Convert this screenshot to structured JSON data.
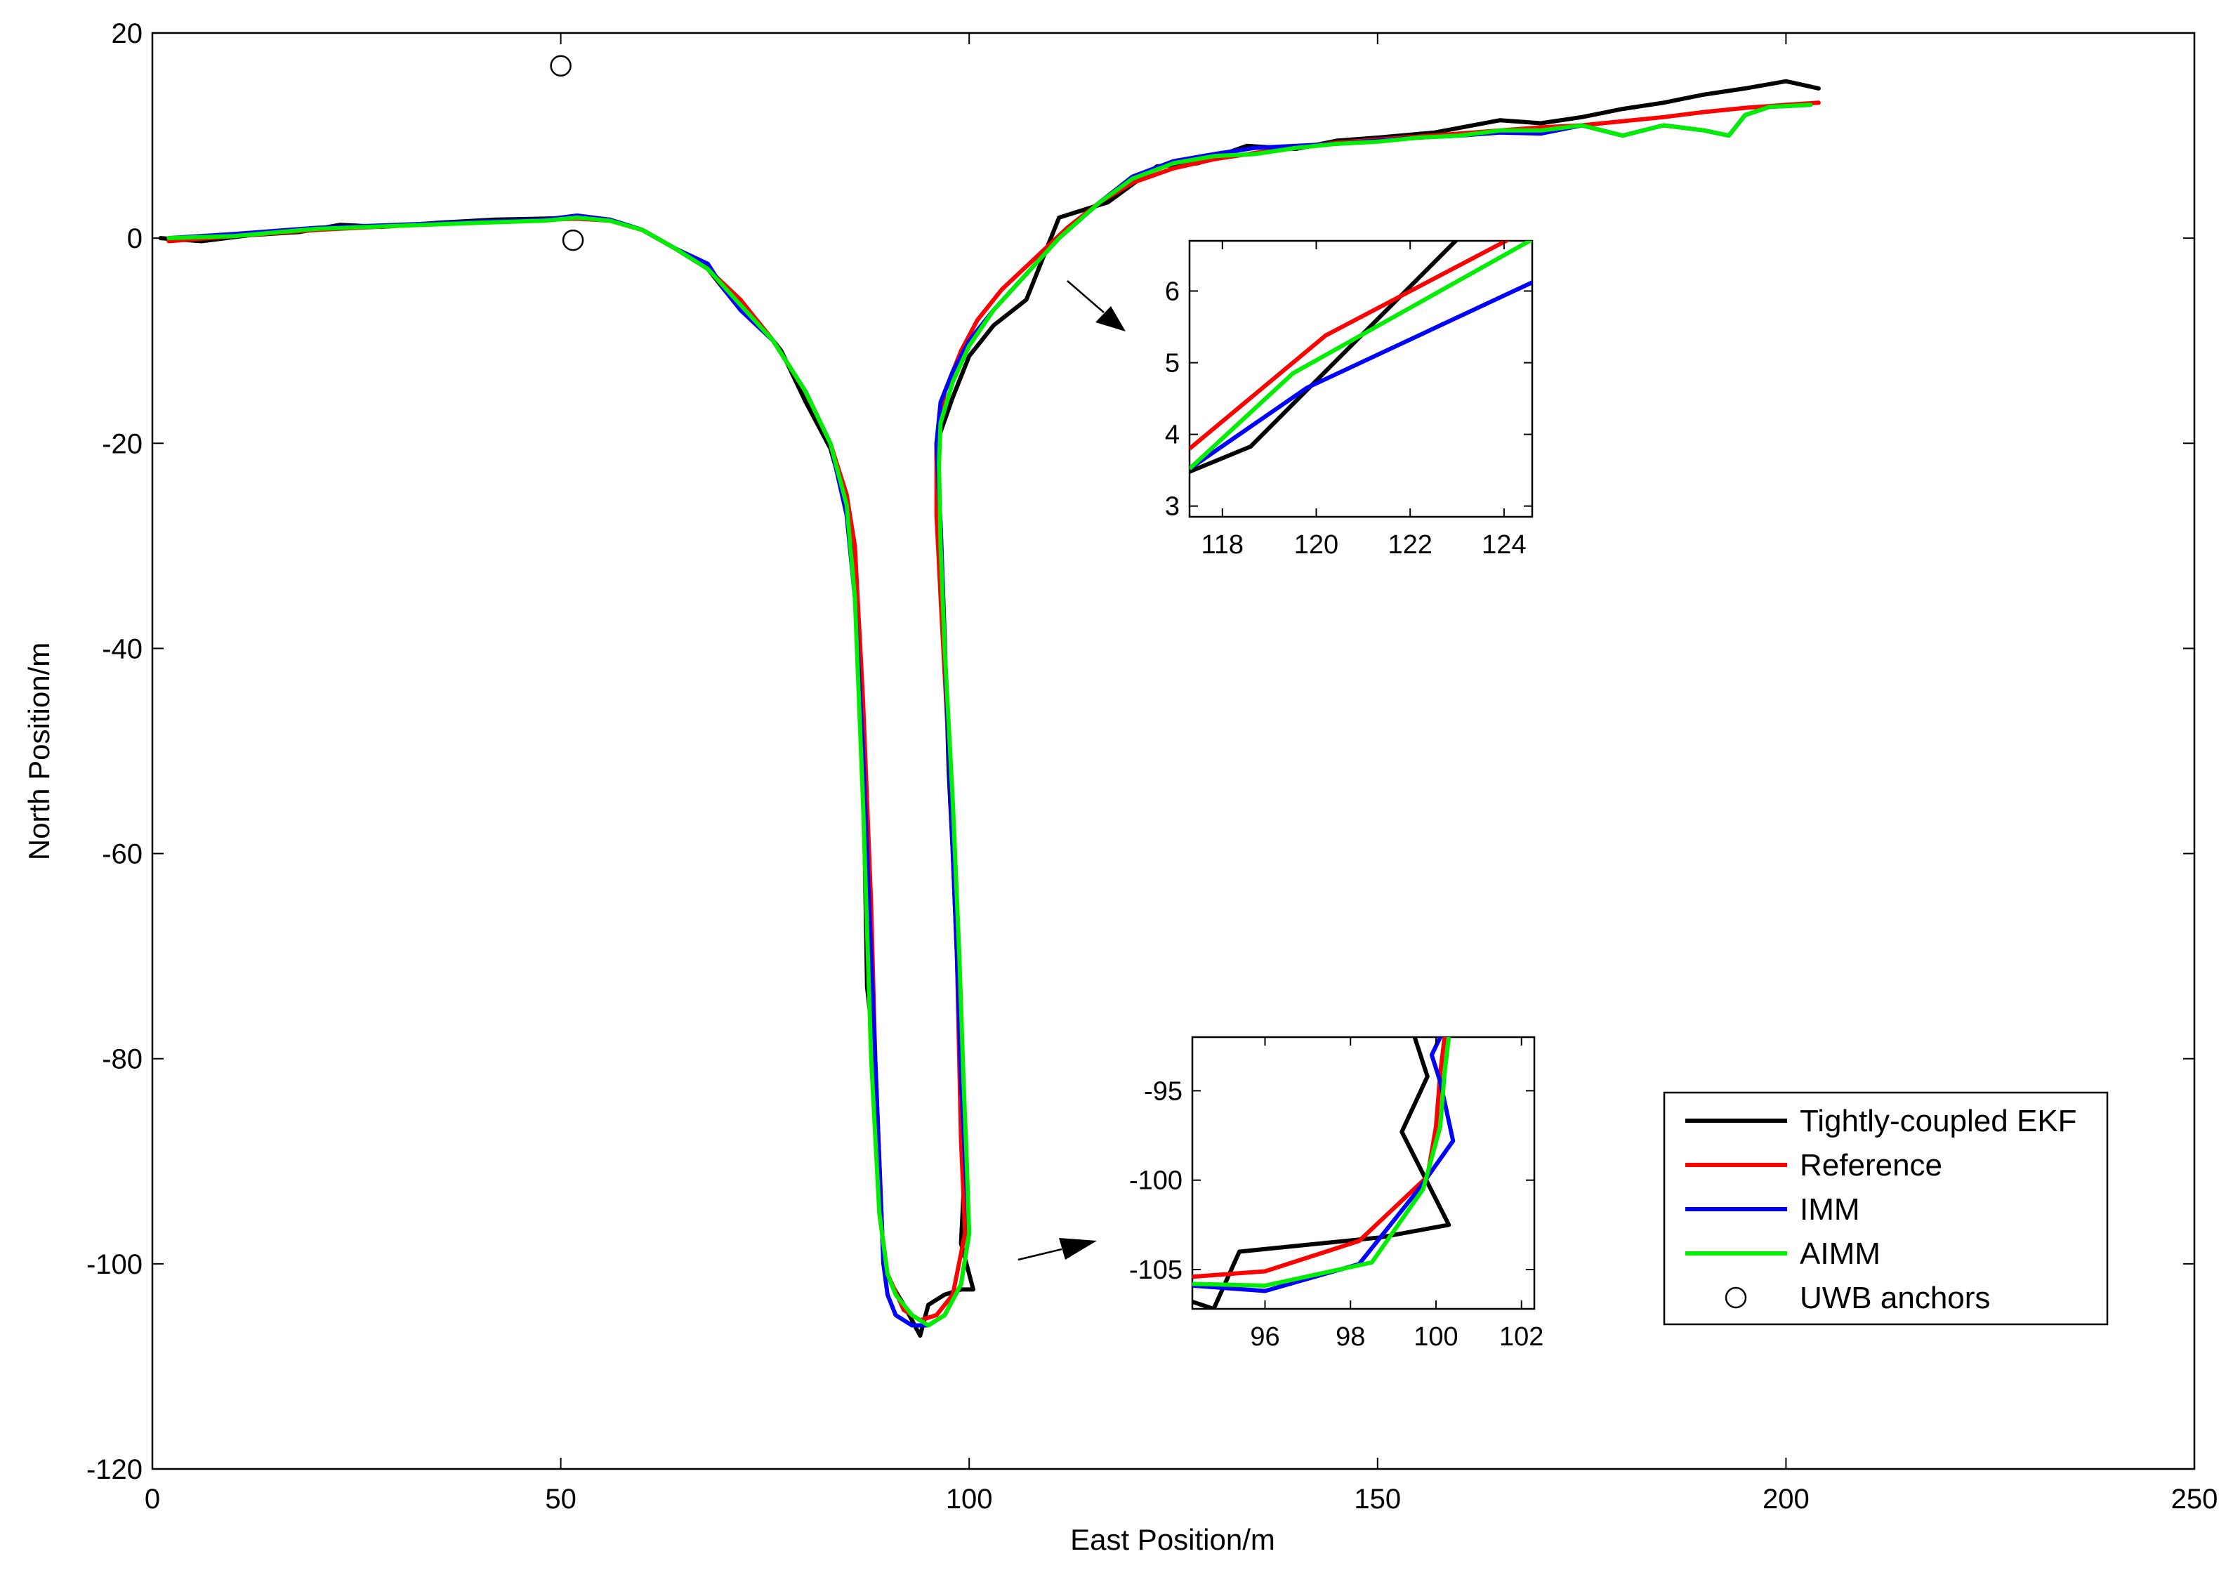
{
  "chart_data": {
    "type": "line",
    "title": "",
    "xlabel": "East Position/m",
    "ylabel": "North Position/m",
    "xlim": [
      0,
      250
    ],
    "ylim": [
      -120,
      20
    ],
    "xticks": [
      0,
      50,
      100,
      150,
      200,
      250
    ],
    "yticks": [
      -120,
      -100,
      -80,
      -60,
      -40,
      -20,
      0,
      20
    ],
    "xtick_labels": [
      "0",
      "50",
      "100",
      "150",
      "200",
      "250"
    ],
    "ytick_labels": [
      "-120",
      "-100",
      "-80",
      "-60",
      "-40",
      "-20",
      "0",
      "20"
    ],
    "grid": false,
    "legend_position": "lower-right",
    "series": [
      {
        "name": "Tightly-coupled EKF",
        "color": "#000000",
        "x": [
          1,
          6,
          12,
          18,
          23,
          28,
          35,
          42,
          48,
          52,
          56,
          60,
          64,
          68,
          70,
          72,
          74,
          77,
          80,
          83,
          85,
          86,
          87,
          87.5,
          88.5,
          89.5,
          90.5,
          92,
          94,
          95,
          97,
          99,
          100.5,
          99,
          99.5,
          99,
          98.5,
          98,
          97.5,
          97,
          96.5,
          96,
          96,
          98,
          100,
          103,
          107,
          111,
          117,
          123,
          128,
          134,
          140,
          145,
          150,
          157,
          165,
          170,
          175,
          180,
          185,
          190,
          195,
          200,
          204
        ],
        "y": [
          0,
          -0.3,
          0.3,
          0.6,
          1.3,
          1.1,
          1.5,
          1.8,
          1.9,
          2.0,
          1.8,
          0.8,
          -1.0,
          -3.0,
          -5.0,
          -6.5,
          -8.0,
          -11.0,
          -16.0,
          -20.5,
          -26.0,
          -32.0,
          -50.0,
          -73.0,
          -80.0,
          -100.0,
          -102.0,
          -104.0,
          -107.0,
          -104.0,
          -103.0,
          -102.5,
          -102.5,
          -98.0,
          -90.0,
          -85.0,
          -70.0,
          -60.0,
          -52.0,
          -39.0,
          -28.0,
          -21.5,
          -20.0,
          -15.5,
          -11.5,
          -8.5,
          -6.0,
          2.0,
          3.5,
          7.0,
          7.3,
          9.0,
          8.7,
          9.5,
          9.8,
          10.3,
          11.5,
          11.2,
          11.8,
          12.6,
          13.2,
          14.0,
          14.6,
          15.3,
          14.6
        ]
      },
      {
        "name": "Reference",
        "color": "#ff0000",
        "x": [
          2,
          10,
          20,
          30,
          40,
          48,
          52,
          56,
          60,
          64,
          68,
          72,
          76,
          80,
          83,
          85,
          86,
          87,
          88,
          88.5,
          89,
          90,
          92,
          94,
          96,
          98,
          99.5,
          99,
          98.5,
          97.5,
          96.5,
          96,
          96,
          97,
          99,
          101,
          104,
          108,
          112,
          116,
          120,
          125,
          130,
          135,
          140,
          145,
          150,
          155,
          160,
          165,
          170,
          175,
          180,
          185,
          190,
          195,
          200,
          204
        ],
        "y": [
          -0.3,
          0.2,
          0.8,
          1.2,
          1.6,
          1.8,
          1.9,
          1.7,
          0.8,
          -1.0,
          -3.0,
          -6.0,
          -10.0,
          -15.0,
          -20.0,
          -25.0,
          -30.0,
          -45.0,
          -65.0,
          -80.0,
          -95.0,
          -101.0,
          -104.5,
          -105.5,
          -105.0,
          -103.0,
          -97.0,
          -88.0,
          -70.0,
          -50.0,
          -35.0,
          -27.0,
          -20.0,
          -15.0,
          -11.0,
          -8.0,
          -5.0,
          -2.0,
          1.0,
          3.5,
          5.4,
          6.8,
          7.7,
          8.3,
          8.9,
          9.3,
          9.6,
          9.9,
          10.2,
          10.5,
          10.8,
          11.0,
          11.4,
          11.8,
          12.3,
          12.7,
          13.0,
          13.2
        ]
      },
      {
        "name": "IMM",
        "color": "#0000ff",
        "x": [
          2,
          10,
          20,
          30,
          40,
          48,
          52,
          56,
          60,
          64,
          68,
          70,
          72,
          76,
          80,
          83,
          85,
          86,
          87,
          88,
          89,
          89.5,
          90,
          91,
          93,
          95,
          97,
          99,
          100,
          99.5,
          99,
          98.5,
          97.5,
          97,
          96.5,
          96,
          96.5,
          98,
          100,
          103,
          107,
          111,
          116,
          120,
          125,
          130,
          135,
          140,
          145,
          150,
          155,
          160,
          165,
          170,
          175,
          180,
          185,
          190,
          193,
          195,
          198,
          203
        ],
        "y": [
          0,
          0.4,
          1.0,
          1.3,
          1.6,
          1.8,
          2.2,
          1.8,
          0.8,
          -1.0,
          -2.5,
          -5.0,
          -7.0,
          -10.0,
          -15.0,
          -20.0,
          -27.0,
          -35.0,
          -50.0,
          -70.0,
          -90.0,
          -100.0,
          -103.0,
          -105.0,
          -106.0,
          -106.0,
          -105.0,
          -102.0,
          -97.0,
          -90.0,
          -82.0,
          -70.0,
          -50.0,
          -40.0,
          -28.0,
          -20.0,
          -16.0,
          -13.0,
          -10.0,
          -7.0,
          -3.5,
          0.0,
          3.5,
          6.0,
          7.5,
          8.2,
          8.8,
          9.0,
          9.2,
          9.5,
          9.8,
          10.0,
          10.3,
          10.2,
          11.0,
          10.0,
          11.0,
          10.5,
          10.0,
          12.0,
          12.8,
          13.0
        ]
      },
      {
        "name": "AIMM",
        "color": "#00ee00",
        "x": [
          2,
          10,
          20,
          30,
          40,
          48,
          52,
          56,
          60,
          64,
          68,
          72,
          76,
          80,
          83,
          85,
          86,
          87,
          88,
          89,
          90,
          91,
          93,
          95,
          97,
          99,
          100,
          99.7,
          99.3,
          98.8,
          98,
          97,
          96.5,
          96.3,
          96.5,
          98,
          100,
          103,
          107,
          111,
          116,
          120,
          125,
          130,
          135,
          140,
          145,
          150,
          155,
          160,
          165,
          170,
          175,
          180,
          185,
          190,
          193,
          195,
          198,
          203
        ],
        "y": [
          0,
          0.2,
          0.9,
          1.2,
          1.5,
          1.7,
          2.0,
          1.7,
          0.8,
          -1.0,
          -3.0,
          -6.5,
          -10.0,
          -15.0,
          -20.0,
          -26.0,
          -35.0,
          -55.0,
          -80.0,
          -95.0,
          -101.0,
          -103.0,
          -105.0,
          -106.0,
          -105.0,
          -102.0,
          -97.0,
          -90.0,
          -82.0,
          -70.0,
          -55.0,
          -40.0,
          -30.0,
          -22.0,
          -18.0,
          -14.0,
          -10.5,
          -7.0,
          -3.5,
          0.0,
          3.5,
          5.8,
          7.3,
          8.0,
          8.2,
          8.8,
          9.2,
          9.4,
          9.8,
          10.0,
          10.5,
          10.5,
          11.0,
          10.0,
          11.0,
          10.5,
          10.0,
          12.0,
          12.8,
          13.0
        ]
      },
      {
        "name": "UWB anchors",
        "color": "#000000",
        "marker": "circle",
        "x": [
          50,
          51.5
        ],
        "y": [
          16.8,
          -0.2
        ]
      }
    ],
    "insets": [
      {
        "name": "upper",
        "xlim": [
          117.3,
          124.6
        ],
        "ylim": [
          2.85,
          6.7
        ],
        "xticks": [
          118,
          120,
          122,
          124
        ],
        "yticks": [
          3,
          4,
          5,
          6
        ],
        "xtick_labels": [
          "118",
          "120",
          "122",
          "124"
        ],
        "ytick_labels": [
          "3",
          "4",
          "5",
          "6"
        ],
        "series": [
          {
            "name": "Tightly-coupled EKF",
            "x": [
              117.3,
              118.6,
              123.0
            ],
            "y": [
              3.48,
              3.83,
              6.72
            ]
          },
          {
            "name": "Reference",
            "x": [
              117.3,
              120.2,
              124.1
            ],
            "y": [
              3.8,
              5.38,
              6.72
            ]
          },
          {
            "name": "IMM",
            "x": [
              117.3,
              119.8,
              124.6
            ],
            "y": [
              3.52,
              4.65,
              6.12
            ]
          },
          {
            "name": "AIMM",
            "x": [
              117.3,
              119.5,
              124.6
            ],
            "y": [
              3.52,
              4.85,
              6.72
            ]
          }
        ]
      },
      {
        "name": "lower",
        "xlim": [
          94.3,
          102.3
        ],
        "ylim": [
          -107.2,
          -92
        ],
        "xticks": [
          96,
          98,
          100,
          102
        ],
        "yticks": [
          -105,
          -100,
          -95
        ],
        "xtick_labels": [
          "96",
          "98",
          "100",
          "102"
        ],
        "ytick_labels": [
          "-105",
          "-100",
          "-95"
        ],
        "series": [
          {
            "name": "Tightly-coupled EKF",
            "x": [
              94.3,
              94.8,
              95.4,
              98.7,
              100.3,
              99.2,
              99.8,
              99.5
            ],
            "y": [
              -106.8,
              -107.2,
              -104.0,
              -103.2,
              -102.5,
              -97.3,
              -94.2,
              -92.0
            ]
          },
          {
            "name": "Reference",
            "x": [
              94.3,
              96.0,
              98.2,
              99.8,
              100.0,
              100.1,
              100.2
            ],
            "y": [
              -105.4,
              -105.1,
              -103.4,
              -99.8,
              -97.0,
              -94.0,
              -92.0
            ]
          },
          {
            "name": "IMM",
            "x": [
              94.3,
              96.0,
              98.2,
              99.6,
              100.4,
              100.1,
              99.9,
              100.1
            ],
            "y": [
              -105.9,
              -106.2,
              -104.7,
              -100.5,
              -97.8,
              -94.5,
              -93.0,
              -92.0
            ]
          },
          {
            "name": "AIMM",
            "x": [
              94.3,
              96.0,
              98.5,
              99.7,
              100.1,
              100.2,
              100.3
            ],
            "y": [
              -105.8,
              -105.9,
              -104.6,
              -100.5,
              -97.0,
              -94.0,
              -92.0
            ]
          }
        ]
      }
    ]
  }
}
